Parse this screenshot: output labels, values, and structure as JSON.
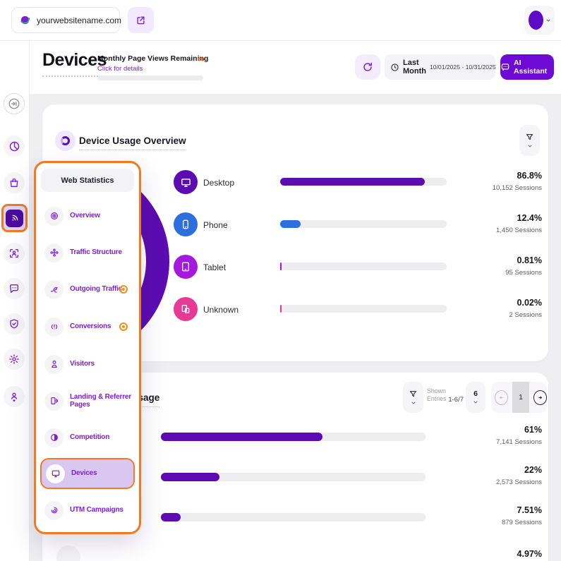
{
  "colors": {
    "brand_purple": "#6d0bd4",
    "chart_purple": "#5c0cb2",
    "menu_purple": "#7d1fd6",
    "highlight_orange": "#f1791f"
  },
  "topbar": {
    "website": "yourwebsitename.com"
  },
  "page_header": {
    "title": "Devices",
    "pageviews_label": "Monthly Page Views Remaining",
    "pageviews_link": "Click for details",
    "pageviews_value": "∞",
    "date_preset": "Last Month",
    "date_range": "10/01/2025 - 10/31/2025",
    "ai_button": "AI Assistant"
  },
  "menu": {
    "header": "Web Statistics",
    "items": [
      {
        "label": "Overview"
      },
      {
        "label": "Traffic Structure"
      },
      {
        "label": "Outgoing Traffic",
        "badge": true
      },
      {
        "label": "Conversions",
        "badge": true
      },
      {
        "label": "Visitors"
      },
      {
        "label": "Landing & Referrer Pages"
      },
      {
        "label": "Competition"
      },
      {
        "label": "Devices",
        "selected": true
      },
      {
        "label": "UTM Campaigns"
      }
    ]
  },
  "overview_card": {
    "title": "Device Usage Overview",
    "rows": [
      {
        "label": "Desktop",
        "pct": "86.8%",
        "pct_num": 86.8,
        "sessions": "10,152 Sessions",
        "color": "#5c0cb2"
      },
      {
        "label": "Phone",
        "pct": "12.4%",
        "pct_num": 12.4,
        "sessions": "1,450 Sessions",
        "color": "#2e6fdf"
      },
      {
        "label": "Tablet",
        "pct": "0.81%",
        "pct_num": 0.81,
        "sessions": "95 Sessions",
        "color": "#a519dd"
      },
      {
        "label": "Unknown",
        "pct": "0.02%",
        "pct_num": 0.02,
        "sessions": "2 Sessions",
        "color": "#e73a97"
      }
    ]
  },
  "usage_card": {
    "title": "Browser Usage",
    "bar_color": "#5c0cb2",
    "shown_entries_label": "Shown Entries",
    "shown_entries_value": "1-6/7",
    "page_size": "6",
    "current_page": "1",
    "rows": [
      {
        "pct": "61%",
        "pct_num": 61,
        "sessions": "7,141 Sessions"
      },
      {
        "pct": "22%",
        "pct_num": 22,
        "sessions": "2,573 Sessions"
      },
      {
        "pct": "7.51%",
        "pct_num": 7.51,
        "sessions": "879 Sessions"
      },
      {
        "pct": "4.97%",
        "pct_num": 4.97,
        "sessions": ""
      }
    ]
  }
}
